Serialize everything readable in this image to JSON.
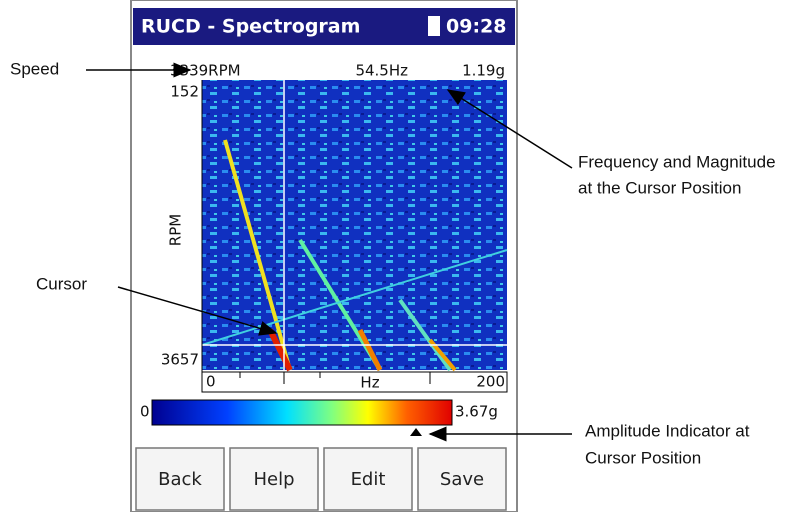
{
  "device": {
    "title": "RUCD - Spectrogram",
    "time": "09:28"
  },
  "readout": {
    "speed": "3339RPM",
    "frequency": "54.5Hz",
    "magnitude": "1.19g"
  },
  "plot": {
    "y_top": "152",
    "y_bottom": "3657",
    "y_label": "RPM",
    "x_left": "0",
    "x_label": "Hz",
    "x_right": "200"
  },
  "colorbar": {
    "min": "0",
    "max": "3.67g"
  },
  "buttons": [
    "Back",
    "Help",
    "Edit",
    "Save"
  ],
  "callouts": {
    "speed": "Speed",
    "frequency": [
      "Frequency and Magnitude",
      "at the Cursor Position"
    ],
    "cursor": "Cursor",
    "amplitude": [
      "Amplitude Indicator at",
      "Cursor Position"
    ]
  }
}
